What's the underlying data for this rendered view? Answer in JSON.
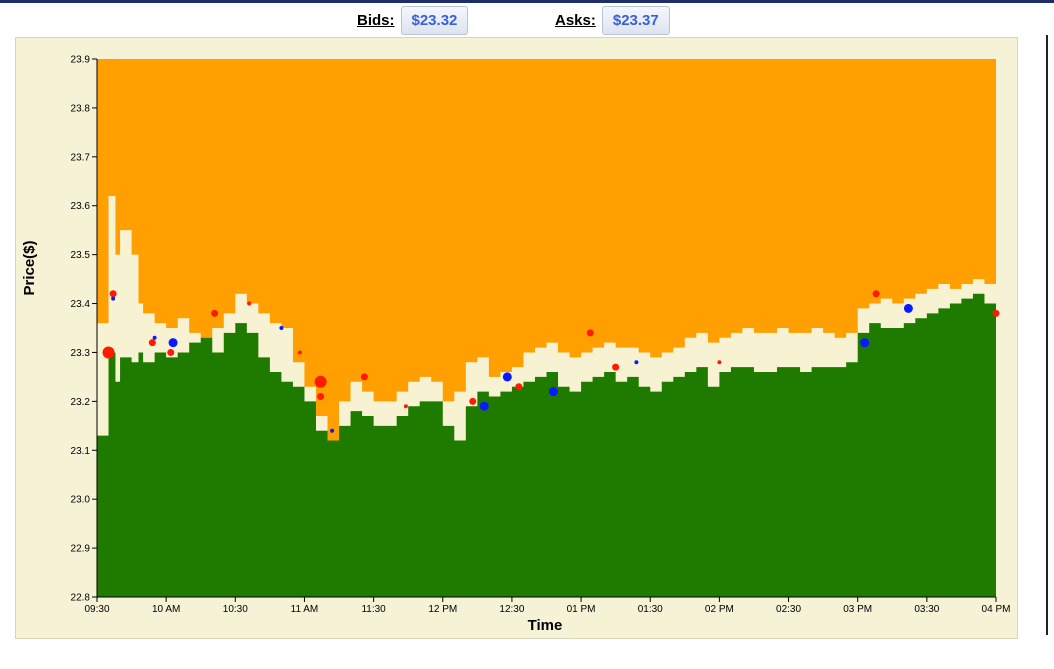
{
  "quotes": {
    "bids_label": "Bids:",
    "bids_value": "$23.32",
    "asks_label": "Asks:",
    "asks_value": "$23.37"
  },
  "colors": {
    "ask_area": "#ff9f00",
    "spread_area": "#f7f3d2",
    "bid_area": "#1f7a00",
    "trade_sell": "#ff1a00",
    "trade_buy": "#0a1aff"
  },
  "chart_data": {
    "type": "area",
    "xlabel": "Time",
    "ylabel": "Price($)",
    "ylim": [
      22.8,
      23.9
    ],
    "y_ticks": [
      "22.8",
      "22.9",
      "23.0",
      "23.1",
      "23.2",
      "23.3",
      "23.4",
      "23.5",
      "23.6",
      "23.7",
      "23.8",
      "23.9"
    ],
    "x_ticks": [
      "09:30",
      "10 AM",
      "10:30",
      "11 AM",
      "11:30",
      "12 PM",
      "12:30",
      "01 PM",
      "01:30",
      "02 PM",
      "02:30",
      "03 PM",
      "03:30",
      "04 PM"
    ],
    "x_minutes_since_open_range": [
      0,
      390
    ],
    "series": [
      {
        "name": "Asks",
        "x": [
          0,
          5,
          8,
          10,
          15,
          18,
          20,
          25,
          30,
          35,
          40,
          45,
          50,
          55,
          60,
          65,
          70,
          75,
          80,
          85,
          90,
          95,
          100,
          105,
          110,
          115,
          120,
          125,
          130,
          135,
          140,
          145,
          150,
          155,
          160,
          165,
          170,
          175,
          180,
          185,
          190,
          195,
          200,
          205,
          210,
          215,
          220,
          225,
          230,
          235,
          240,
          245,
          250,
          255,
          260,
          265,
          270,
          275,
          280,
          285,
          290,
          295,
          300,
          305,
          310,
          315,
          320,
          325,
          330,
          335,
          340,
          345,
          350,
          355,
          360,
          365,
          370,
          375,
          380,
          385,
          390
        ],
        "values": [
          23.36,
          23.62,
          23.5,
          23.55,
          23.5,
          23.4,
          23.38,
          23.36,
          23.35,
          23.37,
          23.34,
          23.33,
          23.35,
          23.38,
          23.42,
          23.4,
          23.38,
          23.36,
          23.35,
          23.28,
          23.23,
          23.17,
          23.12,
          23.2,
          23.24,
          23.22,
          23.2,
          23.2,
          23.22,
          23.24,
          23.25,
          23.24,
          23.2,
          23.22,
          23.28,
          23.29,
          23.25,
          23.26,
          23.27,
          23.3,
          23.31,
          23.32,
          23.3,
          23.29,
          23.3,
          23.31,
          23.32,
          23.31,
          23.31,
          23.3,
          23.29,
          23.3,
          23.31,
          23.33,
          23.34,
          23.32,
          23.33,
          23.34,
          23.35,
          23.34,
          23.34,
          23.35,
          23.34,
          23.34,
          23.35,
          23.34,
          23.33,
          23.34,
          23.39,
          23.4,
          23.41,
          23.4,
          23.41,
          23.42,
          23.43,
          23.44,
          23.43,
          23.44,
          23.45,
          23.44,
          23.43
        ]
      },
      {
        "name": "Bids",
        "x": [
          0,
          5,
          8,
          10,
          15,
          18,
          20,
          25,
          30,
          35,
          40,
          45,
          50,
          55,
          60,
          65,
          70,
          75,
          80,
          85,
          90,
          95,
          100,
          105,
          110,
          115,
          120,
          125,
          130,
          135,
          140,
          145,
          150,
          155,
          160,
          165,
          170,
          175,
          180,
          185,
          190,
          195,
          200,
          205,
          210,
          215,
          220,
          225,
          230,
          235,
          240,
          245,
          250,
          255,
          260,
          265,
          270,
          275,
          280,
          285,
          290,
          295,
          300,
          305,
          310,
          315,
          320,
          325,
          330,
          335,
          340,
          345,
          350,
          355,
          360,
          365,
          370,
          375,
          380,
          385,
          390
        ],
        "values": [
          23.13,
          23.3,
          23.24,
          23.29,
          23.28,
          23.3,
          23.28,
          23.3,
          23.29,
          23.3,
          23.32,
          23.33,
          23.3,
          23.34,
          23.36,
          23.34,
          23.29,
          23.26,
          23.24,
          23.23,
          23.2,
          23.14,
          23.12,
          23.15,
          23.18,
          23.17,
          23.15,
          23.15,
          23.17,
          23.19,
          23.2,
          23.2,
          23.15,
          23.12,
          23.19,
          23.22,
          23.21,
          23.22,
          23.23,
          23.24,
          23.25,
          23.26,
          23.23,
          23.22,
          23.24,
          23.25,
          23.26,
          23.24,
          23.25,
          23.23,
          23.22,
          23.24,
          23.25,
          23.26,
          23.27,
          23.23,
          23.26,
          23.27,
          23.27,
          23.26,
          23.26,
          23.27,
          23.27,
          23.26,
          23.27,
          23.27,
          23.27,
          23.28,
          23.34,
          23.36,
          23.35,
          23.35,
          23.36,
          23.37,
          23.38,
          23.39,
          23.4,
          23.41,
          23.42,
          23.4,
          23.38
        ]
      }
    ],
    "trades": [
      {
        "x": 5,
        "y": 23.3,
        "size": "large",
        "side": "sell"
      },
      {
        "x": 7,
        "y": 23.42,
        "size": "small",
        "side": "sell"
      },
      {
        "x": 7,
        "y": 23.41,
        "size": "tiny",
        "side": "buy"
      },
      {
        "x": 24,
        "y": 23.32,
        "size": "small",
        "side": "sell"
      },
      {
        "x": 25,
        "y": 23.33,
        "size": "tiny",
        "side": "buy"
      },
      {
        "x": 32,
        "y": 23.3,
        "size": "small",
        "side": "sell"
      },
      {
        "x": 33,
        "y": 23.32,
        "size": "medium",
        "side": "buy"
      },
      {
        "x": 51,
        "y": 23.38,
        "size": "small",
        "side": "sell"
      },
      {
        "x": 66,
        "y": 23.4,
        "size": "tiny",
        "side": "sell"
      },
      {
        "x": 80,
        "y": 23.35,
        "size": "tiny",
        "side": "buy"
      },
      {
        "x": 88,
        "y": 23.3,
        "size": "tiny",
        "side": "sell"
      },
      {
        "x": 97,
        "y": 23.24,
        "size": "large",
        "side": "sell"
      },
      {
        "x": 97,
        "y": 23.21,
        "size": "small",
        "side": "sell"
      },
      {
        "x": 102,
        "y": 23.14,
        "size": "tiny",
        "side": "buy"
      },
      {
        "x": 116,
        "y": 23.25,
        "size": "small",
        "side": "sell"
      },
      {
        "x": 134,
        "y": 23.19,
        "size": "tiny",
        "side": "sell"
      },
      {
        "x": 163,
        "y": 23.2,
        "size": "small",
        "side": "sell"
      },
      {
        "x": 168,
        "y": 23.19,
        "size": "medium",
        "side": "buy"
      },
      {
        "x": 178,
        "y": 23.25,
        "size": "medium",
        "side": "buy"
      },
      {
        "x": 183,
        "y": 23.23,
        "size": "small",
        "side": "sell"
      },
      {
        "x": 198,
        "y": 23.22,
        "size": "medium",
        "side": "buy"
      },
      {
        "x": 214,
        "y": 23.34,
        "size": "small",
        "side": "sell"
      },
      {
        "x": 225,
        "y": 23.27,
        "size": "small",
        "side": "sell"
      },
      {
        "x": 234,
        "y": 23.28,
        "size": "tiny",
        "side": "buy"
      },
      {
        "x": 270,
        "y": 23.28,
        "size": "tiny",
        "side": "sell"
      },
      {
        "x": 333,
        "y": 23.32,
        "size": "medium",
        "side": "buy"
      },
      {
        "x": 338,
        "y": 23.42,
        "size": "small",
        "side": "sell"
      },
      {
        "x": 352,
        "y": 23.39,
        "size": "medium",
        "side": "buy"
      },
      {
        "x": 390,
        "y": 23.38,
        "size": "small",
        "side": "sell"
      }
    ]
  }
}
